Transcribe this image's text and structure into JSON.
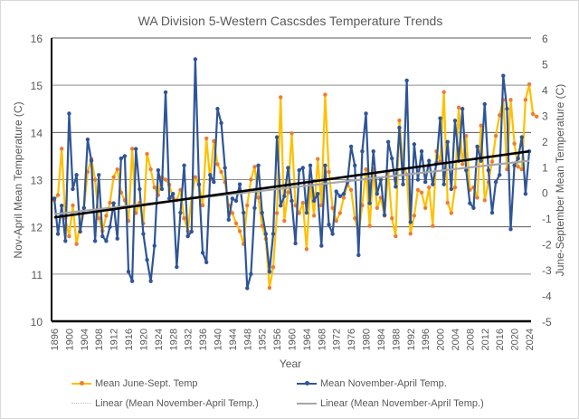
{
  "chart_data": {
    "type": "line",
    "title": "WA Division 5-Western Cascsdes Temperature Trends",
    "xlabel": "Year",
    "ylabel_left": "Nov-April Mean Temperature (C)",
    "ylabel_right": "June-September Mean Temperature (C)",
    "ylim_left": [
      10,
      16
    ],
    "ylim_right": [
      -5,
      6
    ],
    "yticks_left": [
      "10",
      "11",
      "12",
      "13",
      "14",
      "15",
      "16"
    ],
    "yticks_right": [
      "-5",
      "-4",
      "-3",
      "-2",
      "-1",
      "0",
      "1",
      "2",
      "3",
      "4",
      "5",
      "6"
    ],
    "xlim": [
      1896,
      2024
    ],
    "xticks": [
      "1896",
      "1900",
      "1904",
      "1908",
      "1912",
      "1916",
      "1920",
      "1924",
      "1928",
      "1932",
      "1936",
      "1940",
      "1944",
      "1948",
      "1952",
      "1956",
      "1960",
      "1964",
      "1968",
      "1972",
      "1976",
      "1980",
      "1984",
      "1988",
      "1992",
      "1996",
      "2000",
      "2004",
      "2008",
      "2012",
      "2016",
      "2020",
      "2024"
    ],
    "grid": true,
    "legend_position": "bottom",
    "series": [
      {
        "name": "Mean June-Sept. Temp",
        "axis": "right",
        "color": "#FFC000",
        "marker_color": "#ED7D31",
        "start_year": 1896,
        "values": [
          -0.3,
          -0.1,
          1.7,
          -1.0,
          -1.7,
          -0.5,
          -2.0,
          -1.2,
          -0.6,
          0.8,
          1.3,
          0.5,
          -1.0,
          -1.5,
          -0.9,
          -0.4,
          0.6,
          0.9,
          0.0,
          -0.3,
          -1.1,
          1.7,
          -0.8,
          -0.4,
          -1.2,
          1.5,
          0.9,
          0.2,
          -0.1,
          0.6,
          0.5,
          0.3,
          -0.2,
          -0.3,
          0.1,
          -1.0,
          -1.5,
          -0.2,
          0.6,
          0.3,
          -0.5,
          2.1,
          0.5,
          2.0,
          1.1,
          0.8,
          0.4,
          -0.5,
          -0.8,
          -1.2,
          -1.5,
          -2.0,
          -0.5,
          0.5,
          1.0,
          -0.2,
          -1.3,
          -1.8,
          -3.7,
          -2.9,
          -0.8,
          3.7,
          -1.1,
          0.0,
          2.3,
          -0.5,
          -0.8,
          -0.4,
          -2.2,
          0.3,
          -0.9,
          1.3,
          -0.5,
          3.8,
          0.8,
          -0.6,
          -1.1,
          -0.8,
          -0.2,
          0.3,
          0.1,
          -1.0,
          -1.6,
          -0.5,
          0.9,
          -1.3,
          0.9,
          -0.6,
          -0.2,
          -0.9,
          0.8,
          -1.0,
          -1.7,
          2.8,
          1.1,
          0.7,
          -1.6,
          -0.9,
          0.1,
          0.0,
          -0.6,
          0.2,
          -1.3,
          1.6,
          1.2,
          3.9,
          -0.4,
          -0.8,
          0.2,
          3.3,
          1.1,
          2.2,
          0.1,
          0.2,
          -0.2,
          2.6,
          -0.3,
          0.4,
          1.2,
          2.2,
          3.0,
          3.6,
          0.9,
          3.6,
          1.9,
          1.0,
          0.9,
          3.6,
          4.2,
          3.05,
          2.95
        ]
      },
      {
        "name": "Mean November-April Temp.",
        "axis": "left",
        "color": "#2F5597",
        "marker_color": "#2F5597",
        "start_year": 1896,
        "values": [
          12.6,
          11.85,
          12.45,
          11.7,
          14.4,
          12.8,
          13.1,
          11.9,
          12.4,
          13.85,
          13.4,
          11.7,
          13.1,
          11.8,
          11.7,
          12.0,
          12.5,
          11.75,
          13.45,
          13.5,
          11.05,
          10.85,
          13.65,
          12.8,
          11.85,
          11.3,
          10.85,
          11.6,
          13.2,
          12.8,
          14.85,
          12.6,
          12.7,
          11.15,
          12.3,
          13.3,
          11.8,
          11.9,
          15.55,
          12.9,
          11.45,
          11.25,
          13.1,
          12.95,
          14.5,
          14.2,
          13.25,
          12.15,
          12.6,
          12.55,
          12.9,
          12.3,
          10.7,
          11.0,
          12.4,
          13.3,
          12.3,
          11.85,
          11.05,
          11.85,
          13.9,
          12.45,
          12.65,
          13.25,
          12.55,
          11.65,
          13.2,
          13.25,
          12.3,
          13.3,
          12.55,
          12.7,
          11.6,
          13.3,
          12.05,
          11.85,
          12.75,
          12.65,
          12.7,
          12.95,
          13.7,
          13.3,
          11.4,
          13.6,
          14.4,
          12.5,
          13.6,
          12.7,
          13.0,
          12.25,
          13.8,
          13.45,
          12.85,
          14.1,
          12.9,
          15.1,
          12.1,
          13.75,
          13.0,
          13.6,
          12.95,
          13.4,
          12.9,
          13.35,
          14.3,
          12.9,
          13.8,
          12.8,
          14.25,
          13.4,
          14.5,
          13.2,
          12.5,
          12.4,
          13.7,
          13.4,
          14.6,
          13.2,
          12.3,
          12.95,
          13.1,
          15.2,
          14.5,
          11.95,
          13.3,
          13.45,
          13.9,
          12.7,
          13.6
        ]
      },
      {
        "name": "Linear (Mean November-April Temp.)",
        "axis": "left",
        "color": "#000000",
        "style": "solid-thick",
        "legend_style": "dotted",
        "legend_color": "#BFBFBF",
        "x": [
          1896,
          2024
        ],
        "values": [
          12.2,
          13.6
        ]
      },
      {
        "name": "Linear (Mean November-April Temp.)",
        "axis": "left",
        "color": "#A6A6A6",
        "style": "solid",
        "x": [
          1896,
          2024
        ],
        "values": [
          12.27,
          13.4
        ]
      }
    ]
  }
}
